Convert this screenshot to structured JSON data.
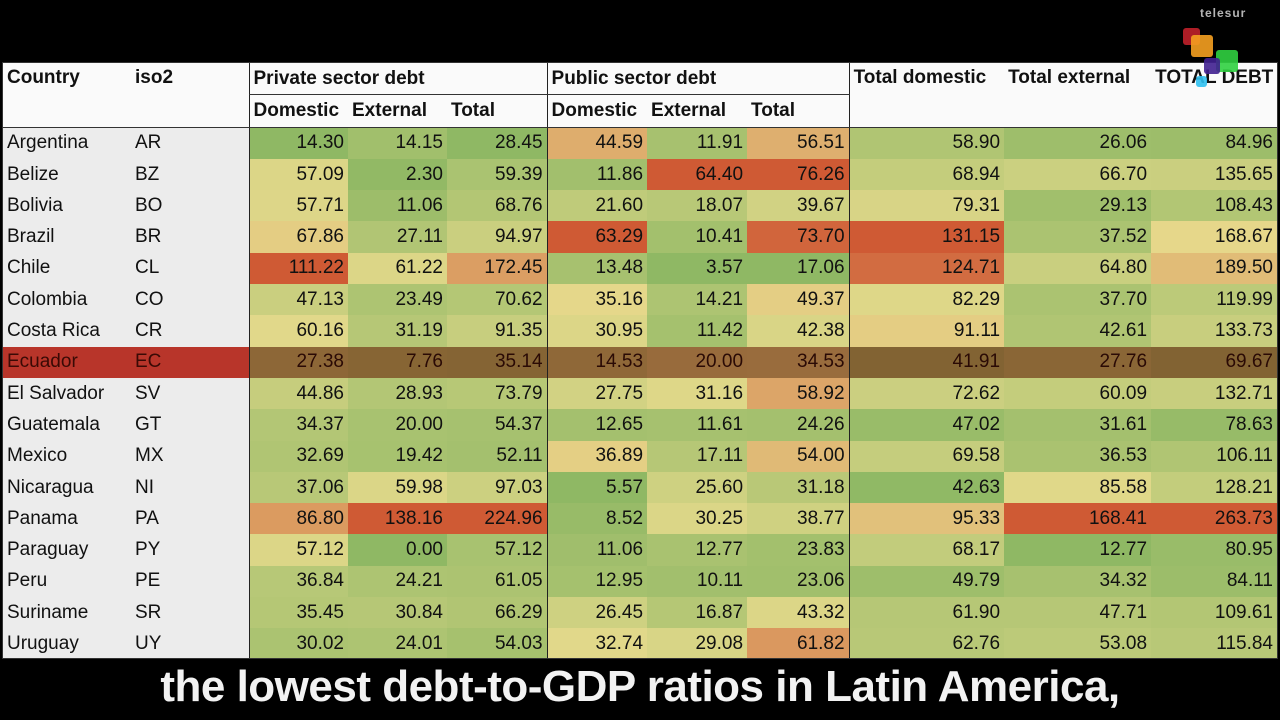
{
  "table": {
    "headers": {
      "country": "Country",
      "iso2": "iso2",
      "private": "Private sector debt",
      "public": "Public sector debt",
      "total_domestic": "Total domestic",
      "total_external": "Total external",
      "total_debt": "TOTAL DEBT",
      "sub": [
        "Domestic",
        "External",
        "Total",
        "Domestic",
        "External",
        "Total"
      ]
    },
    "highlighted_country": "Ecuador",
    "rows": [
      {
        "country": "Argentina",
        "iso2": "AR",
        "values": [
          "14.30",
          "14.15",
          "28.45",
          "44.59",
          "11.91",
          "56.51",
          "58.90",
          "26.06",
          "84.96"
        ]
      },
      {
        "country": "Belize",
        "iso2": "BZ",
        "values": [
          "57.09",
          "2.30",
          "59.39",
          "11.86",
          "64.40",
          "76.26",
          "68.94",
          "66.70",
          "135.65"
        ]
      },
      {
        "country": "Bolivia",
        "iso2": "BO",
        "values": [
          "57.71",
          "11.06",
          "68.76",
          "21.60",
          "18.07",
          "39.67",
          "79.31",
          "29.13",
          "108.43"
        ]
      },
      {
        "country": "Brazil",
        "iso2": "BR",
        "values": [
          "67.86",
          "27.11",
          "94.97",
          "63.29",
          "10.41",
          "73.70",
          "131.15",
          "37.52",
          "168.67"
        ]
      },
      {
        "country": "Chile",
        "iso2": "CL",
        "values": [
          "111.22",
          "61.22",
          "172.45",
          "13.48",
          "3.57",
          "17.06",
          "124.71",
          "64.80",
          "189.50"
        ]
      },
      {
        "country": "Colombia",
        "iso2": "CO",
        "values": [
          "47.13",
          "23.49",
          "70.62",
          "35.16",
          "14.21",
          "49.37",
          "82.29",
          "37.70",
          "119.99"
        ]
      },
      {
        "country": "Costa Rica",
        "iso2": "CR",
        "values": [
          "60.16",
          "31.19",
          "91.35",
          "30.95",
          "11.42",
          "42.38",
          "91.11",
          "42.61",
          "133.73"
        ]
      },
      {
        "country": "Ecuador",
        "iso2": "EC",
        "values": [
          "27.38",
          "7.76",
          "35.14",
          "14.53",
          "20.00",
          "34.53",
          "41.91",
          "27.76",
          "69.67"
        ]
      },
      {
        "country": "El Salvador",
        "iso2": "SV",
        "values": [
          "44.86",
          "28.93",
          "73.79",
          "27.75",
          "31.16",
          "58.92",
          "72.62",
          "60.09",
          "132.71"
        ]
      },
      {
        "country": "Guatemala",
        "iso2": "GT",
        "values": [
          "34.37",
          "20.00",
          "54.37",
          "12.65",
          "11.61",
          "24.26",
          "47.02",
          "31.61",
          "78.63"
        ]
      },
      {
        "country": "Mexico",
        "iso2": "MX",
        "values": [
          "32.69",
          "19.42",
          "52.11",
          "36.89",
          "17.11",
          "54.00",
          "69.58",
          "36.53",
          "106.11"
        ]
      },
      {
        "country": "Nicaragua",
        "iso2": "NI",
        "values": [
          "37.06",
          "59.98",
          "97.03",
          "5.57",
          "25.60",
          "31.18",
          "42.63",
          "85.58",
          "128.21"
        ]
      },
      {
        "country": "Panama",
        "iso2": "PA",
        "values": [
          "86.80",
          "138.16",
          "224.96",
          "8.52",
          "30.25",
          "38.77",
          "95.33",
          "168.41",
          "263.73"
        ]
      },
      {
        "country": "Paraguay",
        "iso2": "PY",
        "values": [
          "57.12",
          "0.00",
          "57.12",
          "11.06",
          "12.77",
          "23.83",
          "68.17",
          "12.77",
          "80.95"
        ]
      },
      {
        "country": "Peru",
        "iso2": "PE",
        "values": [
          "36.84",
          "24.21",
          "61.05",
          "12.95",
          "10.11",
          "23.06",
          "49.79",
          "34.32",
          "84.11"
        ]
      },
      {
        "country": "Suriname",
        "iso2": "SR",
        "values": [
          "35.45",
          "30.84",
          "66.29",
          "26.45",
          "16.87",
          "43.32",
          "61.90",
          "47.71",
          "109.61"
        ]
      },
      {
        "country": "Uruguay",
        "iso2": "UY",
        "values": [
          "30.02",
          "24.01",
          "54.03",
          "32.74",
          "29.08",
          "61.82",
          "62.76",
          "53.08",
          "115.84"
        ]
      }
    ],
    "scale_colors": {
      "low": "#8fb864",
      "mid": "#e6da8c",
      "high": "#cf5a34"
    }
  },
  "caption": "the lowest debt-to-GDP ratios in Latin America,",
  "logo": {
    "text": "telesur",
    "colors": [
      "#c0202a",
      "#f5a020",
      "#30d040",
      "#402090",
      "#30c0f0"
    ]
  }
}
